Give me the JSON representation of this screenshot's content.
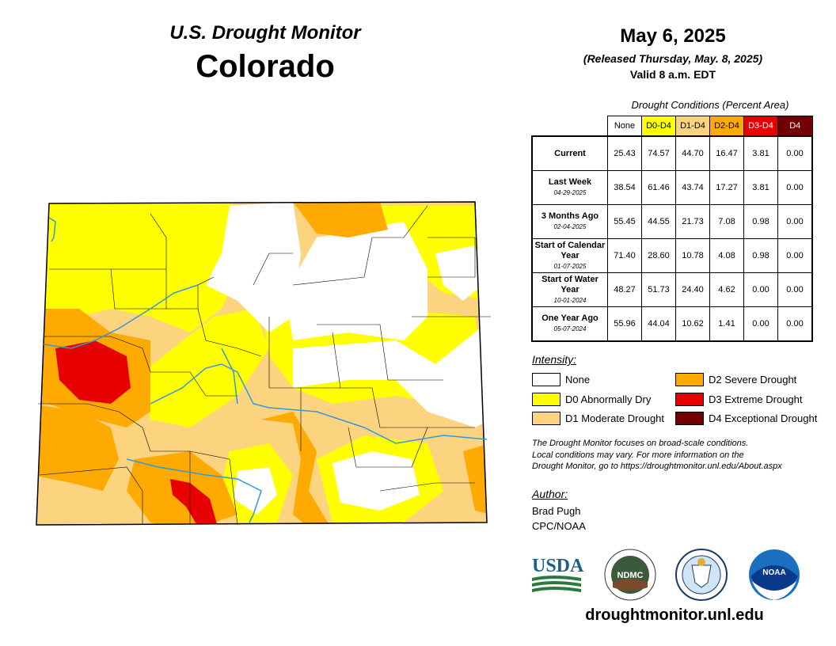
{
  "header": {
    "monitor_title": "U.S. Drought Monitor",
    "state_name": "Colorado",
    "date": "May 6, 2025",
    "released": "(Released Thursday, May. 8, 2025)",
    "valid": "Valid 8 a.m. EDT"
  },
  "table": {
    "caption": "Drought Conditions (Percent Area)",
    "columns": [
      {
        "label": "None",
        "color": "#ffffff",
        "text_color": "#000000"
      },
      {
        "label": "D0-D4",
        "color": "#ffff00",
        "text_color": "#000000"
      },
      {
        "label": "D1-D4",
        "color": "#fcd37f",
        "text_color": "#000000"
      },
      {
        "label": "D2-D4",
        "color": "#ffaa00",
        "text_color": "#000000"
      },
      {
        "label": "D3-D4",
        "color": "#e60000",
        "text_color": "#ffffff"
      },
      {
        "label": "D4",
        "color": "#730000",
        "text_color": "#ffffff"
      }
    ],
    "rows": [
      {
        "label": "Current",
        "sub": "",
        "values": [
          "25.43",
          "74.57",
          "44.70",
          "16.47",
          "3.81",
          "0.00"
        ]
      },
      {
        "label": "Last Week",
        "sub": "04-29-2025",
        "values": [
          "38.54",
          "61.46",
          "43.74",
          "17.27",
          "3.81",
          "0.00"
        ]
      },
      {
        "label": "3 Months Ago",
        "sub": "02-04-2025",
        "values": [
          "55.45",
          "44.55",
          "21.73",
          "7.08",
          "0.98",
          "0.00"
        ]
      },
      {
        "label": "Start of Calendar Year",
        "sub": "01-07-2025",
        "values": [
          "71.40",
          "28.60",
          "10.78",
          "4.08",
          "0.98",
          "0.00"
        ]
      },
      {
        "label": "Start of Water Year",
        "sub": "10-01-2024",
        "values": [
          "48.27",
          "51.73",
          "24.40",
          "4.62",
          "0.00",
          "0.00"
        ]
      },
      {
        "label": "One Year Ago",
        "sub": "05-07-2024",
        "values": [
          "55.96",
          "44.04",
          "10.62",
          "1.41",
          "0.00",
          "0.00"
        ]
      }
    ]
  },
  "legend": {
    "title": "Intensity:",
    "items": [
      {
        "label": "None",
        "color": "#ffffff"
      },
      {
        "label": "D0 Abnormally Dry",
        "color": "#ffff00"
      },
      {
        "label": "D1 Moderate Drought",
        "color": "#fcd37f"
      },
      {
        "label": "D2 Severe Drought",
        "color": "#ffaa00"
      },
      {
        "label": "D3 Extreme Drought",
        "color": "#e60000"
      },
      {
        "label": "D4 Exceptional Drought",
        "color": "#730000"
      }
    ]
  },
  "note": {
    "line1": "The Drought Monitor focuses on broad-scale conditions.",
    "line2": "Local conditions may vary. For more information on the",
    "line3": "Drought Monitor, go to https://droughtmonitor.unl.edu/About.aspx"
  },
  "author": {
    "title": "Author:",
    "name": "Brad Pugh",
    "org": "CPC/NOAA"
  },
  "logos": {
    "usda": "USDA",
    "ndmc": "NDMC",
    "noaa": "NOAA"
  },
  "website": "droughtmonitor.unl.edu",
  "colors": {
    "none": "#ffffff",
    "d0": "#ffff00",
    "d1": "#fcd37f",
    "d2": "#ffaa00",
    "d3": "#e60000",
    "d4": "#730000",
    "river": "#3399dd"
  }
}
